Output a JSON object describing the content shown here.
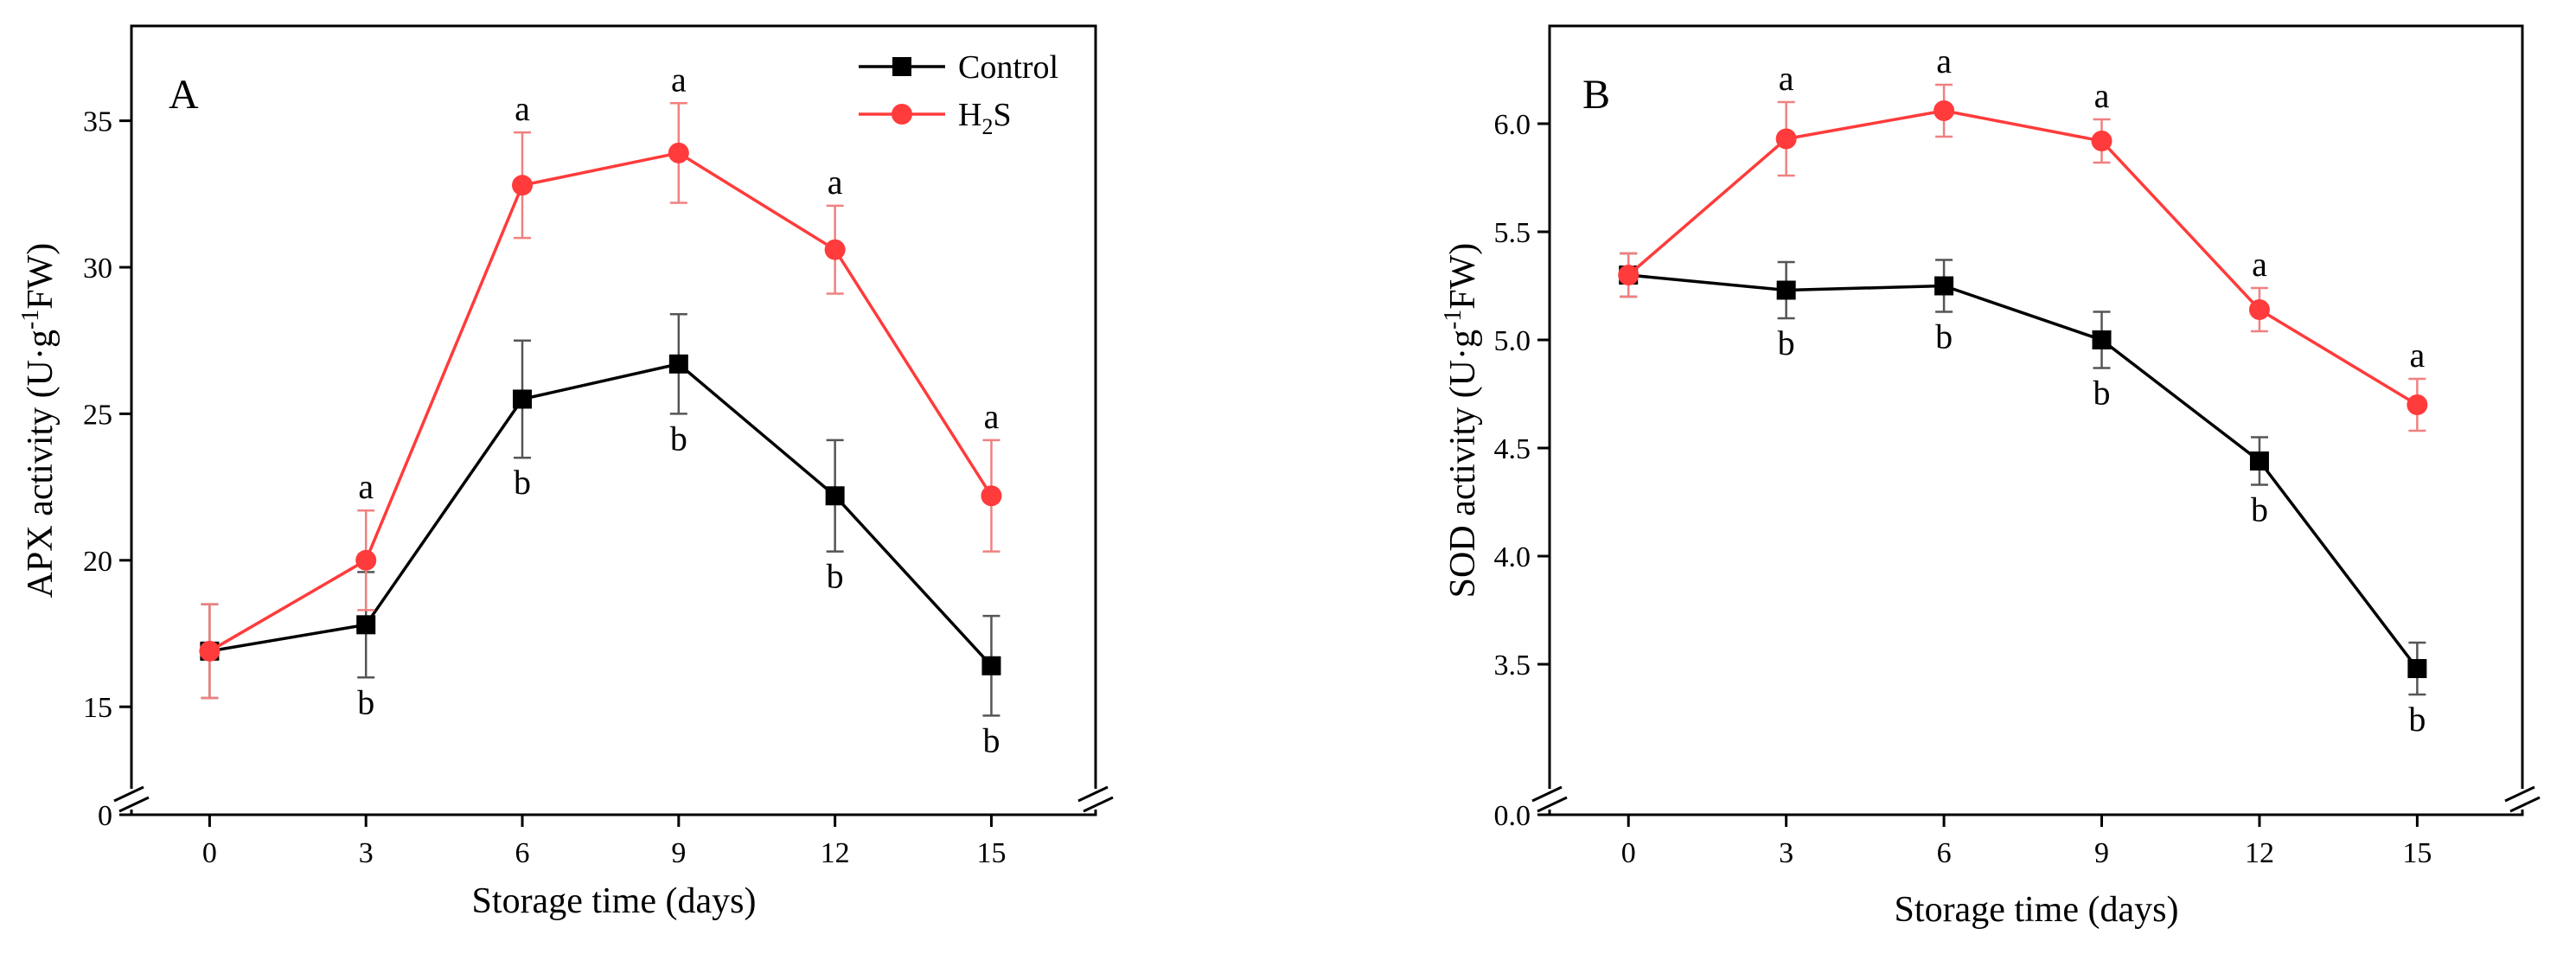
{
  "colors": {
    "control": "#000000",
    "h2s": "#ff3b3b",
    "h2s_error": "#f08080",
    "control_error": "#555555"
  },
  "chart_data": [
    {
      "type": "line",
      "panel_label": "A",
      "title": "",
      "xlabel": "Storage time (days)",
      "ylabel": "APX activity (U·g",
      "ylabel_sup": "-1",
      "ylabel_tail": "FW)",
      "x": [
        0,
        3,
        6,
        9,
        12,
        15
      ],
      "x_ticks": [
        "0",
        "3",
        "6",
        "9",
        "12",
        "15"
      ],
      "xlim": [
        -1.5,
        17
      ],
      "y_ticks": [
        "15",
        "20",
        "25",
        "30",
        "35"
      ],
      "y_zero_label": "0",
      "ylim": [
        13.5,
        38
      ],
      "axis_break": true,
      "series": [
        {
          "name": "Control",
          "marker": "square",
          "values": [
            16.9,
            17.8,
            25.5,
            26.7,
            22.2,
            16.4
          ],
          "errors": [
            1.6,
            1.8,
            2.0,
            1.7,
            1.9,
            1.7
          ],
          "letters": [
            "",
            "b",
            "b",
            "b",
            "b",
            "b"
          ],
          "letter_position": "below"
        },
        {
          "name": "H2S",
          "marker": "circle",
          "values": [
            16.9,
            20.0,
            32.8,
            33.9,
            30.6,
            22.2
          ],
          "errors": [
            1.6,
            1.7,
            1.8,
            1.7,
            1.5,
            1.9
          ],
          "letters": [
            "",
            "a",
            "a",
            "a",
            "a",
            "a"
          ],
          "letter_position": "above"
        }
      ],
      "legend": {
        "placement": "top-right",
        "entries": [
          {
            "series": "Control",
            "label": "Control"
          },
          {
            "series": "H2S",
            "label_main": "H",
            "label_sub": "2",
            "label_tail": "S"
          }
        ]
      }
    },
    {
      "type": "line",
      "panel_label": "B",
      "title": "",
      "xlabel": "Storage time (days)",
      "ylabel": "SOD activity (U·g",
      "ylabel_sup": "-1",
      "ylabel_tail": "FW)",
      "x": [
        0,
        3,
        6,
        9,
        12,
        15
      ],
      "x_ticks": [
        "0",
        "3",
        "6",
        "9",
        "12",
        "15"
      ],
      "xlim": [
        -1.5,
        17
      ],
      "y_ticks": [
        "3.5",
        "4.0",
        "4.5",
        "5.0",
        "5.5",
        "6.0"
      ],
      "y_zero_label": "0.0",
      "ylim": [
        3.1,
        6.42
      ],
      "axis_break": true,
      "series": [
        {
          "name": "Control",
          "marker": "square",
          "values": [
            5.3,
            5.23,
            5.25,
            5.0,
            4.44,
            3.48
          ],
          "errors": [
            0.1,
            0.13,
            0.12,
            0.13,
            0.11,
            0.12
          ],
          "letters": [
            "",
            "b",
            "b",
            "b",
            "b",
            "b"
          ],
          "letter_position": "below"
        },
        {
          "name": "H2S",
          "marker": "circle",
          "values": [
            5.3,
            5.93,
            6.06,
            5.92,
            5.14,
            4.7
          ],
          "errors": [
            0.1,
            0.17,
            0.12,
            0.1,
            0.1,
            0.12
          ],
          "letters": [
            "",
            "a",
            "a",
            "a",
            "a",
            "a"
          ],
          "letter_position": "above"
        }
      ]
    }
  ]
}
